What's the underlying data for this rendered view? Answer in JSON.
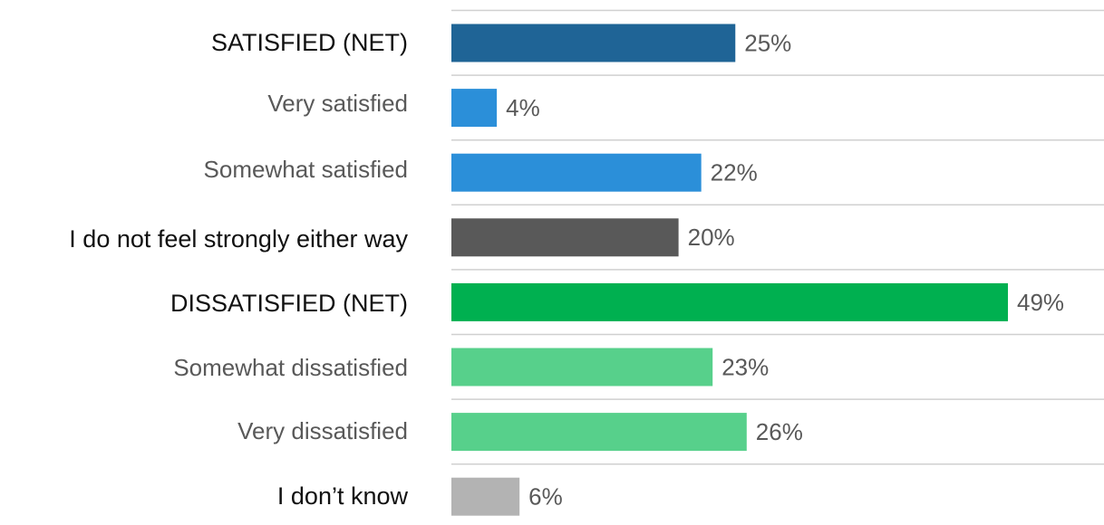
{
  "chart_data": {
    "type": "bar",
    "orientation": "horizontal",
    "categories": [
      "SATISFIED (NET)",
      "Very satisfied",
      "Somewhat satisfied",
      "I do not feel strongly either way",
      "DISSATISFIED (NET)",
      "Somewhat dissatisfied",
      "Very dissatisfied",
      "I don’t know"
    ],
    "values": [
      25,
      4,
      22,
      20,
      49,
      23,
      26,
      6
    ],
    "value_labels": [
      "25%",
      "4%",
      "22%",
      "20%",
      "49%",
      "23%",
      "26%",
      "6%"
    ],
    "colors": [
      "#1f6496",
      "#2b8fd9",
      "#2b8fd9",
      "#595959",
      "#00b050",
      "#57d08b",
      "#57d08b",
      "#b3b3b3"
    ]
  }
}
